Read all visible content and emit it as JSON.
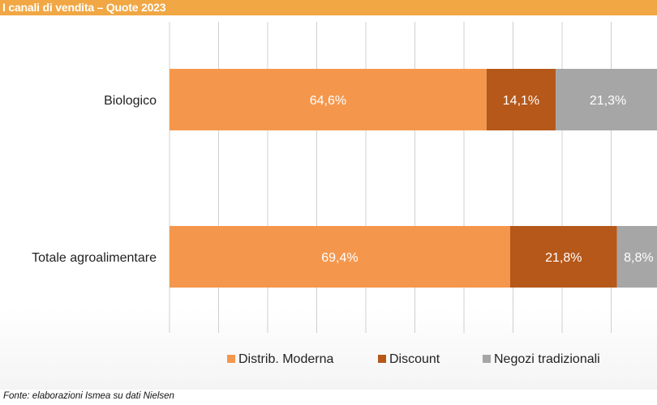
{
  "header": {
    "title": "I canali di vendita – Quote 2023"
  },
  "source": "Fonte: elaborazioni Ismea su dati Nielsen",
  "colors": {
    "header_bg": "#f0a744",
    "distrib_moderna": "#f4974d",
    "discount": "#b5581a",
    "negozi_tradizionali": "#a6a6a6",
    "gridline": "#d0d0d0"
  },
  "chart_data": {
    "type": "bar",
    "orientation": "horizontal",
    "stacked": true,
    "title": "I canali di vendita – Quote 2023",
    "categories": [
      "Biologico",
      "Totale agroalimentare"
    ],
    "series": [
      {
        "name": "Distrib. Moderna",
        "values": [
          64.6,
          69.4
        ],
        "labels": [
          "64,6%",
          "69,4%"
        ]
      },
      {
        "name": "Discount",
        "values": [
          14.1,
          21.8
        ],
        "labels": [
          "14,1%",
          "21,8%"
        ]
      },
      {
        "name": "Negozi tradizionali",
        "values": [
          21.3,
          8.8
        ],
        "labels": [
          "21,3%",
          "8,8%"
        ]
      }
    ],
    "xlim": [
      0,
      100
    ],
    "grid": true,
    "legend": "bottom"
  }
}
